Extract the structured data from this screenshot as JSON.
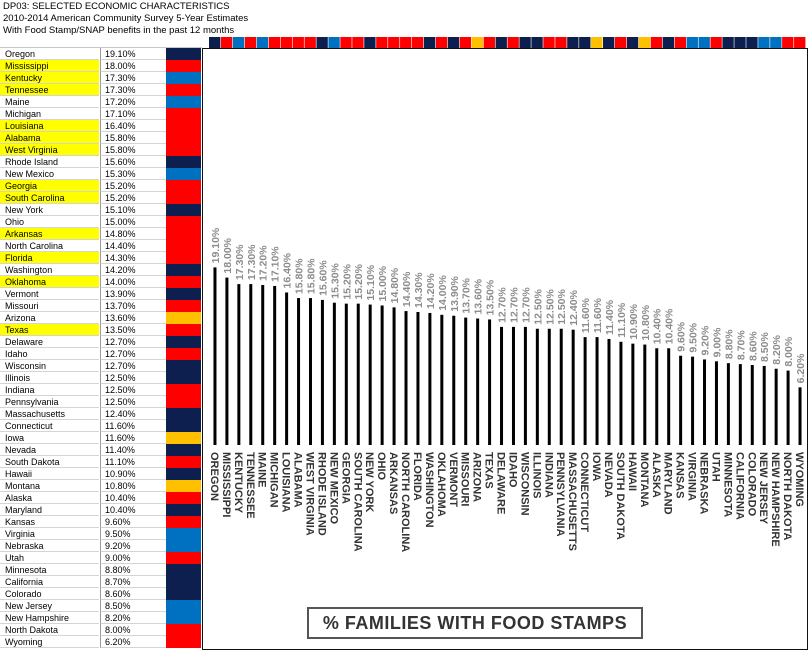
{
  "header": {
    "line1": "DP03: SELECTED ECONOMIC CHARACTERISTICS",
    "line2": "2010-2014 American Community Survey 5-Year Estimates",
    "line3": "With Food Stamp/SNAP benefits in the past 12 months"
  },
  "colors": {
    "red": "#ff0000",
    "navy": "#0d1f4e",
    "blue": "#0070c0",
    "gold": "#ffc000",
    "highlight": "#ffff00",
    "bar": "#000000",
    "label": "#8c8c8c"
  },
  "table": {
    "rows": [
      {
        "state": "Oregon",
        "pct": "19.10%",
        "color": "navy",
        "hl": false
      },
      {
        "state": "Mississippi",
        "pct": "18.00%",
        "color": "red",
        "hl": true
      },
      {
        "state": "Kentucky",
        "pct": "17.30%",
        "color": "blue",
        "hl": true
      },
      {
        "state": "Tennessee",
        "pct": "17.30%",
        "color": "red",
        "hl": true
      },
      {
        "state": "Maine",
        "pct": "17.20%",
        "color": "blue",
        "hl": false
      },
      {
        "state": "Michigan",
        "pct": "17.10%",
        "color": "red",
        "hl": false
      },
      {
        "state": "Louisiana",
        "pct": "16.40%",
        "color": "red",
        "hl": true
      },
      {
        "state": "Alabama",
        "pct": "15.80%",
        "color": "red",
        "hl": true
      },
      {
        "state": "West Virginia",
        "pct": "15.80%",
        "color": "red",
        "hl": true
      },
      {
        "state": "Rhode Island",
        "pct": "15.60%",
        "color": "navy",
        "hl": false
      },
      {
        "state": "New Mexico",
        "pct": "15.30%",
        "color": "blue",
        "hl": false
      },
      {
        "state": "Georgia",
        "pct": "15.20%",
        "color": "red",
        "hl": true
      },
      {
        "state": "South Carolina",
        "pct": "15.20%",
        "color": "red",
        "hl": true
      },
      {
        "state": "New York",
        "pct": "15.10%",
        "color": "navy",
        "hl": false
      },
      {
        "state": "Ohio",
        "pct": "15.00%",
        "color": "red",
        "hl": false
      },
      {
        "state": "Arkansas",
        "pct": "14.80%",
        "color": "red",
        "hl": true
      },
      {
        "state": "North Carolina",
        "pct": "14.40%",
        "color": "red",
        "hl": false
      },
      {
        "state": "Florida",
        "pct": "14.30%",
        "color": "red",
        "hl": true
      },
      {
        "state": "Washington",
        "pct": "14.20%",
        "color": "navy",
        "hl": false
      },
      {
        "state": "Oklahoma",
        "pct": "14.00%",
        "color": "red",
        "hl": true
      },
      {
        "state": "Vermont",
        "pct": "13.90%",
        "color": "navy",
        "hl": false
      },
      {
        "state": "Missouri",
        "pct": "13.70%",
        "color": "red",
        "hl": false
      },
      {
        "state": "Arizona",
        "pct": "13.60%",
        "color": "gold",
        "hl": false
      },
      {
        "state": "Texas",
        "pct": "13.50%",
        "color": "red",
        "hl": true
      },
      {
        "state": "Delaware",
        "pct": "12.70%",
        "color": "navy",
        "hl": false
      },
      {
        "state": "Idaho",
        "pct": "12.70%",
        "color": "red",
        "hl": false
      },
      {
        "state": "Wisconsin",
        "pct": "12.70%",
        "color": "navy",
        "hl": false
      },
      {
        "state": "Illinois",
        "pct": "12.50%",
        "color": "navy",
        "hl": false
      },
      {
        "state": "Indiana",
        "pct": "12.50%",
        "color": "red",
        "hl": false
      },
      {
        "state": "Pennsylvania",
        "pct": "12.50%",
        "color": "red",
        "hl": false
      },
      {
        "state": "Massachusetts",
        "pct": "12.40%",
        "color": "navy",
        "hl": false
      },
      {
        "state": "Connecticut",
        "pct": "11.60%",
        "color": "navy",
        "hl": false
      },
      {
        "state": "Iowa",
        "pct": "11.60%",
        "color": "gold",
        "hl": false
      },
      {
        "state": "Nevada",
        "pct": "11.40%",
        "color": "navy",
        "hl": false
      },
      {
        "state": "South Dakota",
        "pct": "11.10%",
        "color": "red",
        "hl": false
      },
      {
        "state": "Hawaii",
        "pct": "10.90%",
        "color": "navy",
        "hl": false
      },
      {
        "state": "Montana",
        "pct": "10.80%",
        "color": "gold",
        "hl": false
      },
      {
        "state": "Alaska",
        "pct": "10.40%",
        "color": "red",
        "hl": false
      },
      {
        "state": "Maryland",
        "pct": "10.40%",
        "color": "navy",
        "hl": false
      },
      {
        "state": "Kansas",
        "pct": "9.60%",
        "color": "red",
        "hl": false
      },
      {
        "state": "Virginia",
        "pct": "9.50%",
        "color": "blue",
        "hl": false
      },
      {
        "state": "Nebraska",
        "pct": "9.20%",
        "color": "blue",
        "hl": false
      },
      {
        "state": "Utah",
        "pct": "9.00%",
        "color": "red",
        "hl": false
      },
      {
        "state": "Minnesota",
        "pct": "8.80%",
        "color": "navy",
        "hl": false
      },
      {
        "state": "California",
        "pct": "8.70%",
        "color": "navy",
        "hl": false
      },
      {
        "state": "Colorado",
        "pct": "8.60%",
        "color": "navy",
        "hl": false
      },
      {
        "state": "New Jersey",
        "pct": "8.50%",
        "color": "blue",
        "hl": false
      },
      {
        "state": "New Hampshire",
        "pct": "8.20%",
        "color": "blue",
        "hl": false
      },
      {
        "state": "North Dakota",
        "pct": "8.00%",
        "color": "red",
        "hl": false
      },
      {
        "state": "Wyoming",
        "pct": "6.20%",
        "color": "red",
        "hl": false
      }
    ]
  },
  "chart_data": {
    "type": "bar",
    "title": "% FAMILIES WITH FOOD STAMPS",
    "categories": [
      "OREGON",
      "MISSISSIPPI",
      "KENTUCKY",
      "TENNESSEE",
      "MAINE",
      "MICHIGAN",
      "LOUISIANA",
      "ALABAMA",
      "WEST VIRGINIA",
      "RHODE ISLAND",
      "NEW MEXICO",
      "GEORGIA",
      "SOUTH CAROLINA",
      "NEW YORK",
      "OHIO",
      "ARKANSAS",
      "NORTH CAROLINA",
      "FLORIDA",
      "WASHINGTON",
      "OKLAHOMA",
      "VERMONT",
      "MISSOURI",
      "ARIZONA",
      "TEXAS",
      "DELAWARE",
      "IDAHO",
      "WISCONSIN",
      "ILLINOIS",
      "INDIANA",
      "PENNSYLVANIA",
      "MASSACHUSETTS",
      "CONNECTICUT",
      "IOWA",
      "NEVADA",
      "SOUTH DAKOTA",
      "HAWAII",
      "MONTANA",
      "ALASKA",
      "MARYLAND",
      "KANSAS",
      "VIRGINIA",
      "NEBRASKA",
      "UTAH",
      "MINNESOTA",
      "CALIFORNIA",
      "COLORADO",
      "NEW JERSEY",
      "NEW HAMPSHIRE",
      "NORTH DAKOTA",
      "WYOMING"
    ],
    "values": [
      19.1,
      18.0,
      17.3,
      17.3,
      17.2,
      17.1,
      16.4,
      15.8,
      15.8,
      15.6,
      15.3,
      15.2,
      15.2,
      15.1,
      15.0,
      14.8,
      14.4,
      14.3,
      14.2,
      14.0,
      13.9,
      13.7,
      13.6,
      13.5,
      12.7,
      12.7,
      12.7,
      12.5,
      12.5,
      12.5,
      12.4,
      11.6,
      11.6,
      11.4,
      11.1,
      10.9,
      10.8,
      10.4,
      10.4,
      9.6,
      9.5,
      9.2,
      9.0,
      8.8,
      8.7,
      8.6,
      8.5,
      8.2,
      8.0,
      6.2
    ],
    "value_labels": [
      "19.10%",
      "18.00%",
      "17.30%",
      "17.30%",
      "17.20%",
      "17.10%",
      "16.40%",
      "15.80%",
      "15.80%",
      "15.60%",
      "15.30%",
      "15.20%",
      "15.20%",
      "15.10%",
      "15.00%",
      "14.80%",
      "14.40%",
      "14.30%",
      "14.20%",
      "14.00%",
      "13.90%",
      "13.70%",
      "13.60%",
      "13.50%",
      "12.70%",
      "12.70%",
      "12.70%",
      "12.50%",
      "12.50%",
      "12.50%",
      "12.40%",
      "11.60%",
      "11.60%",
      "11.40%",
      "11.10%",
      "10.90%",
      "10.80%",
      "10.40%",
      "10.40%",
      "9.60%",
      "9.50%",
      "9.20%",
      "9.00%",
      "8.80%",
      "8.70%",
      "8.60%",
      "8.50%",
      "8.20%",
      "8.00%",
      "6.20%"
    ],
    "color_strip": [
      "navy",
      "red",
      "blue",
      "red",
      "blue",
      "red",
      "red",
      "red",
      "red",
      "navy",
      "blue",
      "red",
      "red",
      "navy",
      "red",
      "red",
      "red",
      "red",
      "navy",
      "red",
      "navy",
      "red",
      "gold",
      "red",
      "navy",
      "red",
      "navy",
      "navy",
      "red",
      "red",
      "navy",
      "navy",
      "gold",
      "navy",
      "red",
      "navy",
      "gold",
      "red",
      "navy",
      "red",
      "blue",
      "blue",
      "red",
      "navy",
      "navy",
      "navy",
      "blue",
      "blue",
      "red",
      "red"
    ],
    "ylim": [
      0,
      40
    ],
    "grid": false,
    "legend": "none"
  }
}
